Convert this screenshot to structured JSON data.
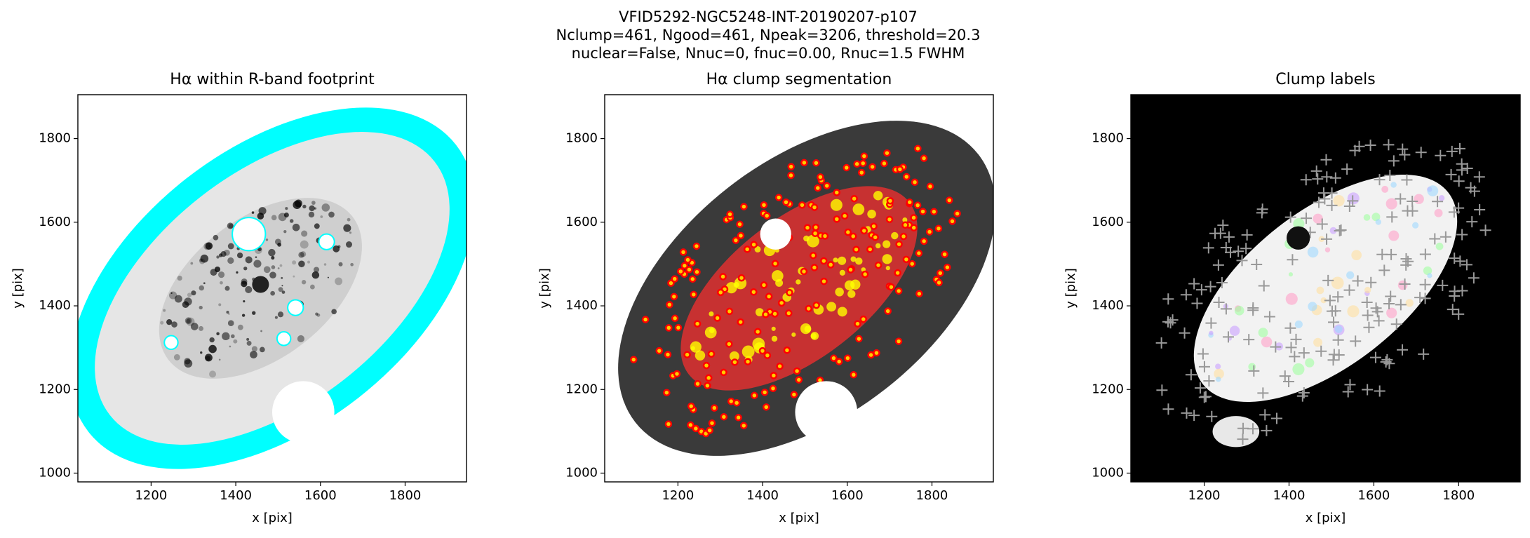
{
  "title": [
    "VFID5292-NGC5248-INT-20190207-p107",
    "Nclump=461, Ngood=461, Npeak=3206, threshold=20.3",
    "nuclear=False, Nnuc=0, fnuc=0.00, Rnuc=1.5 FWHM"
  ],
  "chart_data": [
    {
      "type": "image",
      "style": "footprint",
      "title": "Hα within R-band footprint",
      "xlabel": "x [pix]",
      "ylabel": "y [pix]",
      "xlim": [
        1027,
        1945
      ],
      "ylim": [
        979,
        1905
      ],
      "xticks": [
        1200,
        1400,
        1600,
        1800
      ],
      "yticks": [
        1000,
        1200,
        1400,
        1600,
        1800
      ]
    },
    {
      "type": "image",
      "style": "segmentation",
      "title": "Hα clump segmentation",
      "xlabel": "x [pix]",
      "ylabel": "y [pix]",
      "xlim": [
        1027,
        1945
      ],
      "ylim": [
        979,
        1905
      ],
      "xticks": [
        1200,
        1400,
        1600,
        1800
      ],
      "yticks": [
        1000,
        1200,
        1400,
        1600,
        1800
      ]
    },
    {
      "type": "image",
      "style": "labels",
      "title": "Clump labels",
      "xlabel": "x [pix]",
      "ylabel": "y [pix]",
      "xlim": [
        1027,
        1945
      ],
      "ylim": [
        979,
        1905
      ],
      "xticks": [
        1200,
        1400,
        1600,
        1800
      ],
      "yticks": [
        1000,
        1200,
        1400,
        1600,
        1800
      ]
    }
  ]
}
